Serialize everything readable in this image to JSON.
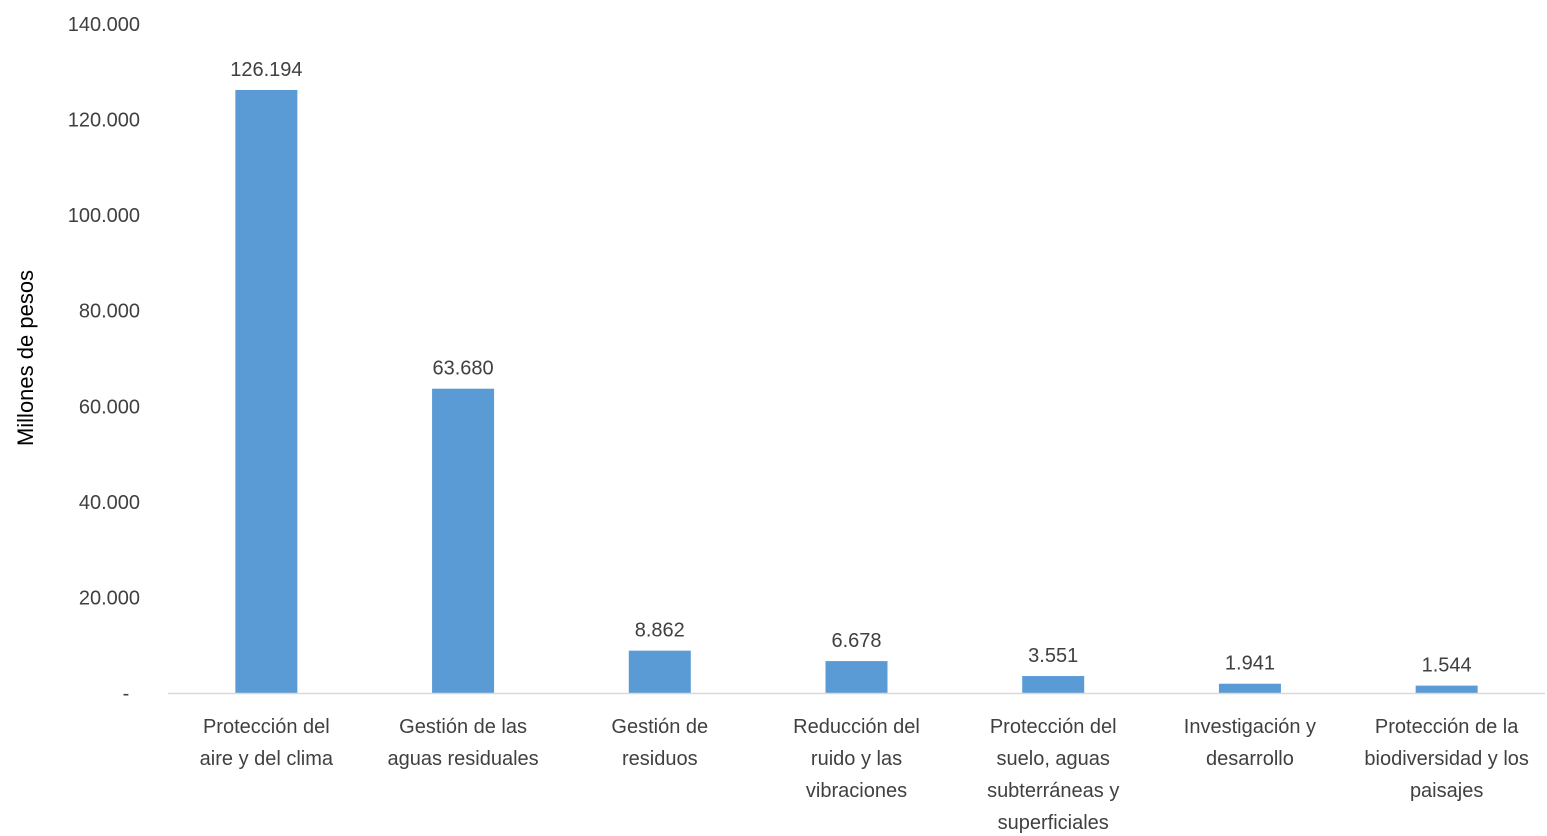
{
  "chart_data": {
    "type": "bar",
    "title": "",
    "xlabel": "",
    "ylabel": "Millones de pesos",
    "ylim": [
      0,
      140000
    ],
    "yticks": [
      0,
      20000,
      40000,
      60000,
      80000,
      100000,
      120000,
      140000
    ],
    "ytick_labels": [
      "-",
      "20.000",
      "40.000",
      "60.000",
      "80.000",
      "100.000",
      "120.000",
      "140.000"
    ],
    "categories": [
      [
        "Protección del",
        "aire y del clima"
      ],
      [
        "Gestión de las",
        "aguas residuales"
      ],
      [
        "Gestión de",
        "residuos"
      ],
      [
        "Reducción del",
        "ruido y las",
        "vibraciones"
      ],
      [
        "Protección del",
        "suelo, aguas",
        "subterráneas y",
        "superficiales"
      ],
      [
        "Investigación y",
        "desarrollo"
      ],
      [
        "Protección de la",
        "biodiversidad y los",
        "paisajes"
      ]
    ],
    "values": [
      126194,
      63680,
      8862,
      6678,
      3551,
      1941,
      1544
    ],
    "value_labels": [
      "126.194",
      "63.680",
      "8.862",
      "6.678",
      "3.551",
      "1.941",
      "1.544"
    ],
    "grid": false,
    "legend": "none",
    "bar_color": "#5B9BD5",
    "axis_color": "#D9D9D9"
  }
}
